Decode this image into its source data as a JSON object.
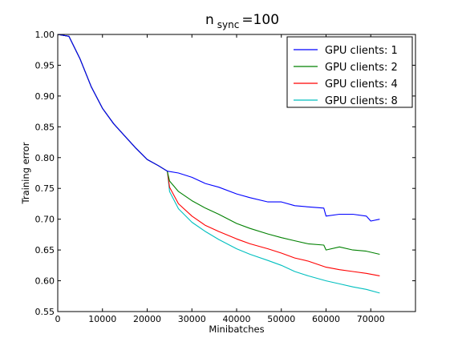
{
  "chart_data": {
    "type": "line",
    "title": {
      "main": "n",
      "subscript": "sync",
      "suffix": "=100"
    },
    "xlabel": "Minibatches",
    "ylabel": "Training error",
    "xlim": [
      0,
      80000
    ],
    "ylim": [
      0.55,
      1.0
    ],
    "xticks": [
      0,
      10000,
      20000,
      30000,
      40000,
      50000,
      60000,
      70000
    ],
    "xtick_labels": [
      "0",
      "10000",
      "20000",
      "30000",
      "40000",
      "50000",
      "60000",
      "70000"
    ],
    "yticks": [
      0.55,
      0.6,
      0.65,
      0.7,
      0.75,
      0.8,
      0.85,
      0.9,
      0.95,
      1.0
    ],
    "ytick_labels": [
      "0.55",
      "0.60",
      "0.65",
      "0.70",
      "0.75",
      "0.80",
      "0.85",
      "0.90",
      "0.95",
      "1.00"
    ],
    "grid": false,
    "legend_position": "top-right",
    "shared_prefix": {
      "x": [
        0,
        2500,
        5000,
        7500,
        10000,
        12500,
        15000,
        17500,
        20000,
        22500,
        24500
      ],
      "y": [
        1.0,
        0.997,
        0.96,
        0.915,
        0.88,
        0.855,
        0.835,
        0.815,
        0.797,
        0.787,
        0.778
      ]
    },
    "series": [
      {
        "name": "GPU clients: 1",
        "color": "#0000ff",
        "x": [
          24500,
          27000,
          30000,
          33000,
          36000,
          40000,
          43000,
          47000,
          50000,
          53000,
          56000,
          59500,
          60000,
          63000,
          66000,
          69000,
          70000,
          72000
        ],
        "y": [
          0.778,
          0.775,
          0.768,
          0.758,
          0.752,
          0.741,
          0.735,
          0.728,
          0.728,
          0.722,
          0.72,
          0.718,
          0.705,
          0.708,
          0.708,
          0.705,
          0.697,
          0.7
        ]
      },
      {
        "name": "GPU clients: 2",
        "color": "#008000",
        "x": [
          24500,
          25000,
          27000,
          30000,
          33000,
          36000,
          40000,
          43000,
          47000,
          50000,
          53000,
          56000,
          59500,
          60000,
          63000,
          66000,
          69000,
          72000
        ],
        "y": [
          0.778,
          0.762,
          0.745,
          0.73,
          0.718,
          0.708,
          0.693,
          0.685,
          0.676,
          0.67,
          0.665,
          0.66,
          0.658,
          0.65,
          0.655,
          0.65,
          0.648,
          0.643
        ]
      },
      {
        "name": "GPU clients: 4",
        "color": "#ff0000",
        "x": [
          24500,
          25000,
          27000,
          30000,
          33000,
          36000,
          40000,
          43000,
          47000,
          50000,
          53000,
          56000,
          60000,
          63000,
          66000,
          69000,
          72000
        ],
        "y": [
          0.778,
          0.752,
          0.725,
          0.705,
          0.69,
          0.68,
          0.668,
          0.66,
          0.652,
          0.645,
          0.637,
          0.632,
          0.622,
          0.618,
          0.615,
          0.612,
          0.608
        ]
      },
      {
        "name": "GPU clients: 8",
        "color": "#00bfbf",
        "x": [
          24500,
          25000,
          27000,
          30000,
          33000,
          36000,
          40000,
          43000,
          47000,
          50000,
          53000,
          56000,
          60000,
          63000,
          66000,
          69000,
          72000
        ],
        "y": [
          0.778,
          0.745,
          0.717,
          0.695,
          0.68,
          0.667,
          0.652,
          0.643,
          0.633,
          0.625,
          0.615,
          0.608,
          0.6,
          0.595,
          0.59,
          0.586,
          0.58
        ]
      }
    ]
  }
}
